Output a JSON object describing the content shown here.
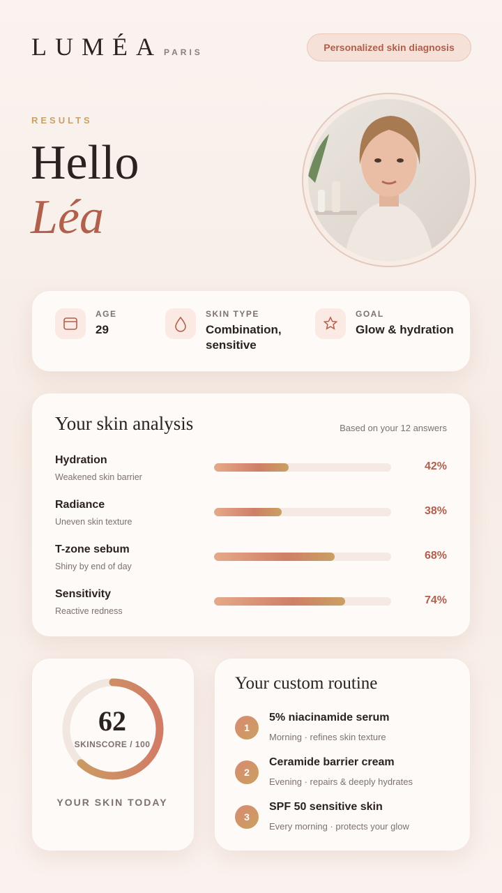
{
  "header": {
    "brand": "LUMÉA",
    "city": "PARIS",
    "badge": "Personalized skin diagnosis"
  },
  "hero": {
    "eyebrow": "RESULTS",
    "greeting": "Hello",
    "name": "Léa"
  },
  "profile": [
    {
      "label": "AGE",
      "value": "29"
    },
    {
      "label": "SKIN TYPE",
      "value": "Combination, sensitive"
    },
    {
      "label": "GOAL",
      "value": "Glow & hydration"
    }
  ],
  "analysis": {
    "title": "Your skin analysis",
    "subtitle": "Based on your 12 answers",
    "items": [
      {
        "name": "Hydration",
        "note": "Weakened skin barrier",
        "value": 42,
        "value_label": "42%"
      },
      {
        "name": "Radiance",
        "note": "Uneven skin texture",
        "value": 38,
        "value_label": "38%"
      },
      {
        "name": "T-zone sebum",
        "note": "Shiny by end of day",
        "value": 68,
        "value_label": "68%"
      },
      {
        "name": "Sensitivity",
        "note": "Reactive redness",
        "value": 74,
        "value_label": "74%"
      }
    ]
  },
  "score": {
    "value": 62,
    "label": "SKINSCORE / 100",
    "caption": "YOUR SKIN TODAY"
  },
  "routine": {
    "title": "Your custom routine",
    "steps": [
      {
        "number": "1",
        "title": "5% niacinamide serum",
        "note": "Morning · refines skin texture"
      },
      {
        "number": "2",
        "title": "Ceramide barrier cream",
        "note": "Evening · repairs & deeply hydrates"
      },
      {
        "number": "3",
        "title": "SPF 50 sensitive skin",
        "note": "Every morning · protects your glow"
      }
    ]
  }
}
